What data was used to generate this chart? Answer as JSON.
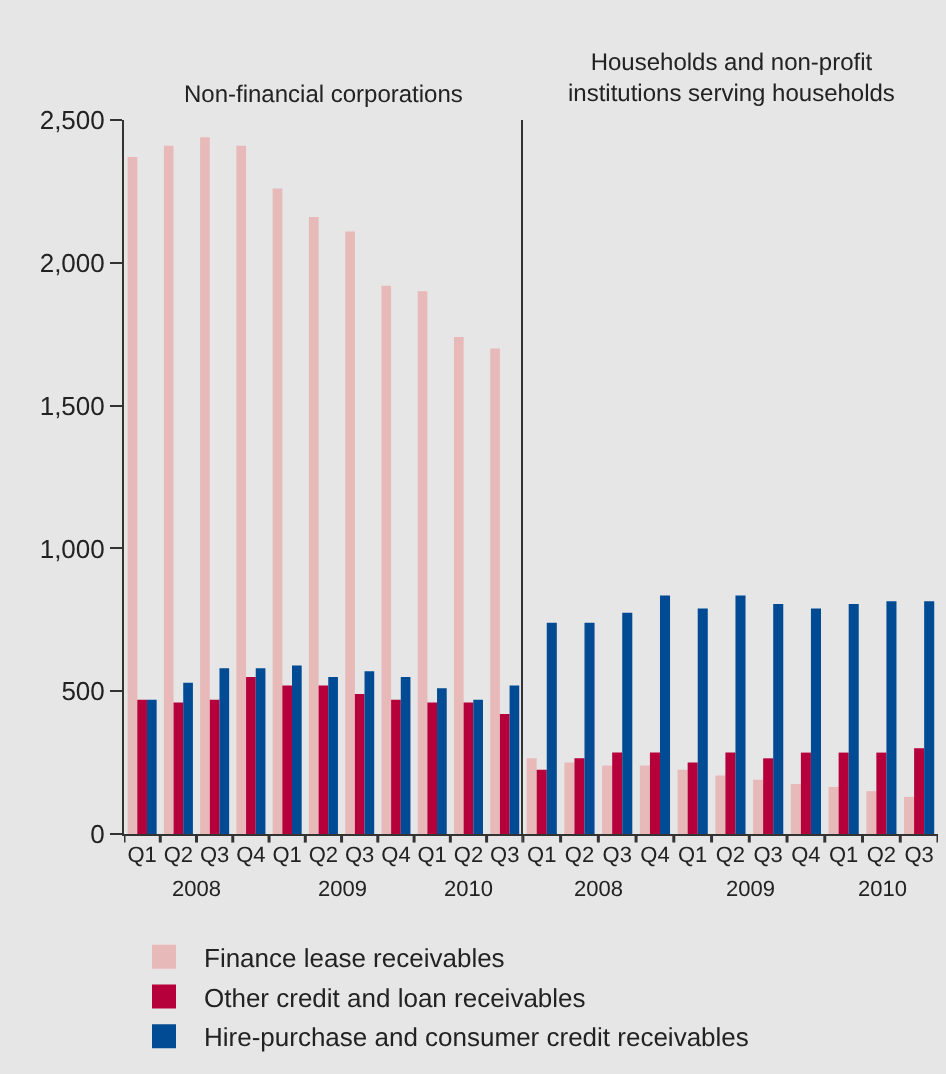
{
  "chart_data": [
    {
      "type": "bar",
      "title": "Non-financial corporations",
      "categories": [
        "Q1",
        "Q2",
        "Q3",
        "Q4",
        "Q1",
        "Q2",
        "Q3",
        "Q4",
        "Q1",
        "Q2",
        "Q3"
      ],
      "annotations": [
        "2008",
        "2009",
        "2010"
      ],
      "series": [
        {
          "name": "Finance lease receivables",
          "color": "#e8b9b9",
          "values": [
            2370,
            2410,
            2440,
            2410,
            2260,
            2160,
            2110,
            1920,
            1900,
            1740,
            1700
          ]
        },
        {
          "name": "Other credit and loan receivables",
          "color": "#b5003c",
          "values": [
            470,
            460,
            470,
            550,
            520,
            520,
            490,
            470,
            460,
            460,
            420
          ]
        },
        {
          "name": "Hire-purchase and consumer credit receivables",
          "color": "#004b93",
          "values": [
            470,
            530,
            580,
            580,
            590,
            550,
            570,
            550,
            510,
            470,
            520
          ]
        }
      ],
      "ylim": [
        0,
        2500
      ],
      "yticks": [
        0,
        500,
        {
          "value": 1000,
          "label": "1,000"
        },
        {
          "value": 1500,
          "label": "1,500"
        },
        {
          "value": 2000,
          "label": "2,000"
        },
        {
          "value": 2500,
          "label": "2,500"
        }
      ],
      "legend": "bottom"
    },
    {
      "type": "bar",
      "title": "Households and non-profit institutions serving households",
      "categories": [
        "Q1",
        "Q2",
        "Q3",
        "Q4",
        "Q1",
        "Q2",
        "Q3",
        "Q4",
        "Q1",
        "Q2",
        "Q3"
      ],
      "annotations": [
        "2008",
        "2009",
        "2010"
      ],
      "series": [
        {
          "color": "#e8b9b9",
          "values": [
            265,
            250,
            240,
            240,
            225,
            205,
            190,
            175,
            165,
            150,
            130
          ]
        },
        {
          "color": "#b5003c",
          "values": [
            225,
            265,
            285,
            285,
            250,
            285,
            265,
            285,
            285,
            285,
            300
          ]
        },
        {
          "color": "#004b93",
          "values": [
            740,
            740,
            775,
            835,
            790,
            835,
            805,
            790,
            805,
            815,
            815
          ]
        }
      ],
      "ylim": [
        0,
        2500
      ],
      "tick_labels": "x"
    }
  ]
}
